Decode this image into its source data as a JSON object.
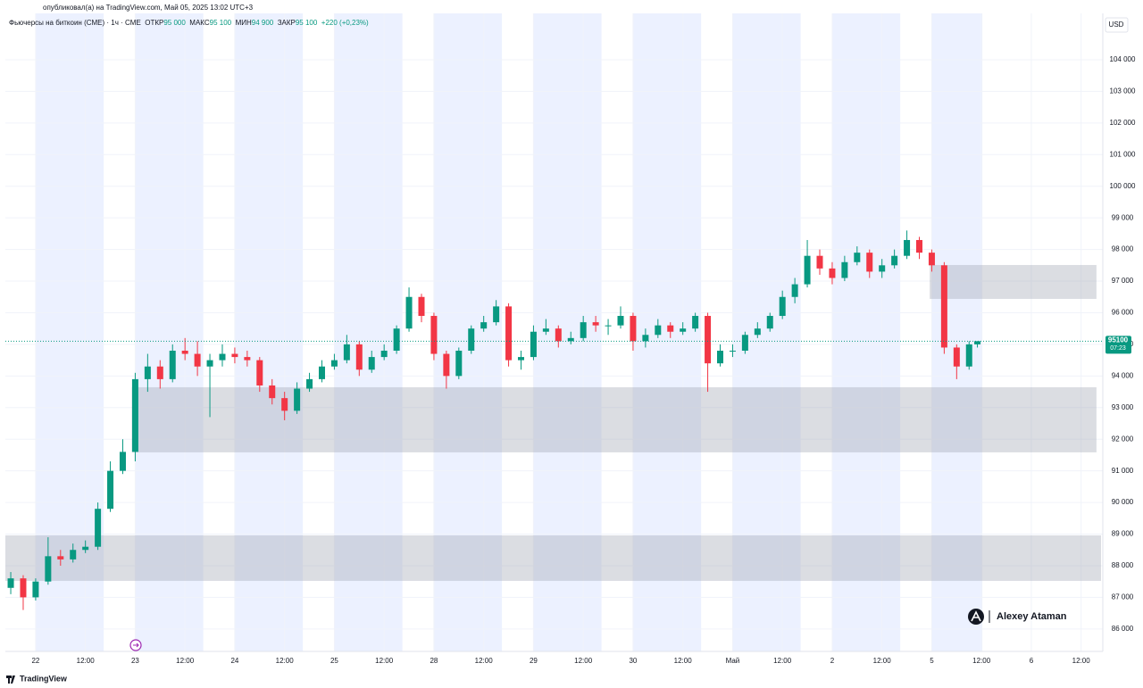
{
  "header": {
    "published": "опубликовал(а) на TradingView.com, Май 05, 2025 13:02 UTC+3",
    "symbol": "Фьючерсы на биткоин (CME) · 1ч · CME",
    "open_label": "ОТКР",
    "open": "95 000",
    "high_label": "МАКС",
    "high": "95 100",
    "low_label": "МИН",
    "low": "94 900",
    "close_label": "ЗАКР",
    "close": "95 100",
    "change": "+220 (+0,23%)"
  },
  "chart_data": {
    "type": "candlestick",
    "currency": "USD",
    "x": [
      -6,
      -3,
      0,
      3,
      6,
      9,
      12,
      15,
      18,
      21,
      24,
      27,
      30,
      33,
      36,
      39,
      42,
      45,
      48,
      51,
      54,
      57,
      60,
      63,
      66,
      69,
      72,
      75,
      78,
      81,
      84,
      87,
      90,
      93,
      96,
      99,
      102,
      105,
      108,
      111,
      114,
      117,
      120,
      123,
      126,
      129,
      132,
      135,
      138,
      141,
      144,
      147,
      150,
      153,
      156,
      159,
      162,
      165,
      168,
      171,
      174,
      177,
      180,
      183,
      186,
      189,
      192,
      195,
      198,
      201,
      204,
      207,
      210,
      213,
      216,
      219,
      222,
      225,
      227
    ],
    "open": [
      87300,
      87600,
      87000,
      87500,
      88300,
      88200,
      88500,
      88600,
      89800,
      91000,
      91600,
      93900,
      94300,
      93900,
      94800,
      94700,
      94300,
      94500,
      94700,
      94600,
      94500,
      93700,
      93300,
      92900,
      93600,
      93900,
      94300,
      94500,
      95000,
      94200,
      94600,
      94800,
      95500,
      96500,
      95900,
      94700,
      94000,
      94800,
      95500,
      95700,
      96200,
      94500,
      94600,
      95400,
      95500,
      95100,
      95200,
      95700,
      95600,
      95600,
      95900,
      95100,
      95300,
      95600,
      95400,
      95500,
      95900,
      94400,
      94800,
      94800,
      95300,
      95500,
      95900,
      96500,
      96900,
      97800,
      97400,
      97100,
      97600,
      97900,
      97300,
      97500,
      97800,
      98300,
      97900,
      97500,
      94900,
      94300,
      95000
    ],
    "high": [
      87800,
      87700,
      87600,
      88900,
      88500,
      88700,
      88800,
      90000,
      91300,
      92000,
      94100,
      94700,
      94500,
      95000,
      95200,
      95100,
      94700,
      95000,
      94900,
      94800,
      94600,
      93900,
      93500,
      93800,
      94100,
      94500,
      94700,
      95300,
      95100,
      94800,
      95000,
      95600,
      96800,
      96600,
      96000,
      94800,
      94900,
      95600,
      95900,
      96400,
      96300,
      94800,
      95600,
      95800,
      95600,
      95400,
      95900,
      95900,
      95800,
      96200,
      96000,
      95500,
      95800,
      95700,
      95700,
      96000,
      96000,
      95000,
      95000,
      95400,
      95700,
      96000,
      96700,
      97100,
      98300,
      98000,
      97600,
      97800,
      98100,
      98000,
      97700,
      98000,
      98600,
      98400,
      98000,
      97600,
      95000,
      95100,
      95100
    ],
    "low": [
      87100,
      86600,
      86900,
      87400,
      88000,
      88100,
      88400,
      88500,
      89700,
      90900,
      91300,
      93500,
      93600,
      93800,
      94500,
      94000,
      92700,
      94300,
      94400,
      94300,
      93500,
      93100,
      92600,
      92800,
      93500,
      93800,
      94200,
      94400,
      94000,
      94100,
      94500,
      94700,
      95400,
      95700,
      94500,
      93600,
      93900,
      94700,
      95400,
      95600,
      94300,
      94200,
      94500,
      95300,
      94900,
      95000,
      95100,
      95400,
      95300,
      95500,
      94800,
      94900,
      95200,
      95200,
      95300,
      95400,
      93500,
      94300,
      94600,
      94700,
      95200,
      95400,
      95800,
      96300,
      96800,
      97200,
      96900,
      97000,
      97500,
      97100,
      97100,
      97400,
      97700,
      97700,
      97300,
      94700,
      93900,
      94200,
      94900
    ],
    "close": [
      87600,
      87000,
      87500,
      88300,
      88200,
      88500,
      88600,
      89800,
      91000,
      91600,
      93900,
      94300,
      93900,
      94800,
      94700,
      94300,
      94500,
      94700,
      94600,
      94500,
      93700,
      93300,
      92900,
      93600,
      93900,
      94300,
      94500,
      95000,
      94200,
      94600,
      94800,
      95500,
      96500,
      95900,
      94700,
      94000,
      94800,
      95500,
      95700,
      96200,
      94500,
      94600,
      95400,
      95500,
      95100,
      95200,
      95700,
      95600,
      95600,
      95900,
      95100,
      95300,
      95600,
      95400,
      95500,
      95900,
      94400,
      94800,
      94800,
      95300,
      95500,
      95900,
      96500,
      96900,
      97800,
      97400,
      97100,
      97600,
      97900,
      97300,
      97500,
      97800,
      98300,
      97900,
      97500,
      94900,
      94300,
      95000,
      95100
    ],
    "up_color": "#089981",
    "down_color": "#f23645",
    "xlim": [
      -7.3,
      256.8
    ],
    "xticks": [
      {
        "value": 0,
        "label": "22"
      },
      {
        "value": 12,
        "label": "12:00"
      },
      {
        "value": 24,
        "label": "23"
      },
      {
        "value": 36,
        "label": "12:00"
      },
      {
        "value": 48,
        "label": "24"
      },
      {
        "value": 60,
        "label": "12:00"
      },
      {
        "value": 72,
        "label": "25"
      },
      {
        "value": 84,
        "label": "12:00"
      },
      {
        "value": 96,
        "label": "28"
      },
      {
        "value": 108,
        "label": "12:00"
      },
      {
        "value": 120,
        "label": "29"
      },
      {
        "value": 132,
        "label": "12:00"
      },
      {
        "value": 144,
        "label": "30"
      },
      {
        "value": 156,
        "label": "12:00"
      },
      {
        "value": 168,
        "label": "Май"
      },
      {
        "value": 180,
        "label": "12:00"
      },
      {
        "value": 192,
        "label": "2"
      },
      {
        "value": 204,
        "label": "12:00"
      },
      {
        "value": 216,
        "label": "5"
      },
      {
        "value": 228,
        "label": "12:00"
      },
      {
        "value": 240,
        "label": "6"
      },
      {
        "value": 252,
        "label": "12:00"
      }
    ],
    "ylim": [
      85290,
      105467
    ],
    "yticks": [
      {
        "value": 86000,
        "label": "86 000"
      },
      {
        "value": 87000,
        "label": "87 000"
      },
      {
        "value": 88000,
        "label": "88 000"
      },
      {
        "value": 89000,
        "label": "89 000"
      },
      {
        "value": 90000,
        "label": "90 000"
      },
      {
        "value": 91000,
        "label": "91 000"
      },
      {
        "value": 92000,
        "label": "92 000"
      },
      {
        "value": 93000,
        "label": "93 000"
      },
      {
        "value": 94000,
        "label": "94 000"
      },
      {
        "value": 95000,
        "label": "95 000"
      },
      {
        "value": 96000,
        "label": "96 000"
      },
      {
        "value": 97000,
        "label": "97 000"
      },
      {
        "value": 98000,
        "label": "98 000"
      },
      {
        "value": 99000,
        "label": "99 000"
      },
      {
        "value": 100000,
        "label": "100 000"
      },
      {
        "value": 101000,
        "label": "101 000"
      },
      {
        "value": 102000,
        "label": "102 000"
      },
      {
        "value": 103000,
        "label": "103 000"
      },
      {
        "value": 104000,
        "label": "104 000"
      }
    ],
    "grid": true,
    "sessions": [
      [
        0,
        16.4
      ],
      [
        24,
        40.4
      ],
      [
        48,
        64.4
      ],
      [
        72,
        88.4
      ],
      [
        96,
        112.4
      ],
      [
        120,
        136.4
      ],
      [
        144,
        160.4
      ],
      [
        168,
        184.4
      ],
      [
        192,
        208.4
      ],
      [
        216,
        228.2
      ]
    ],
    "zones": [
      {
        "x": [
          23.2,
          255.7
        ],
        "y": [
          91585,
          93644
        ]
      },
      {
        "x": [
          -7.3,
          256.8
        ],
        "y": [
          87521,
          88960
        ]
      },
      {
        "x": [
          215.5,
          255.7
        ],
        "y": [
          96438,
          97510
        ]
      }
    ],
    "price_line": 95100,
    "countdown": "07:23"
  },
  "watermark": "Alexey Ataman",
  "footer": "TradingView"
}
